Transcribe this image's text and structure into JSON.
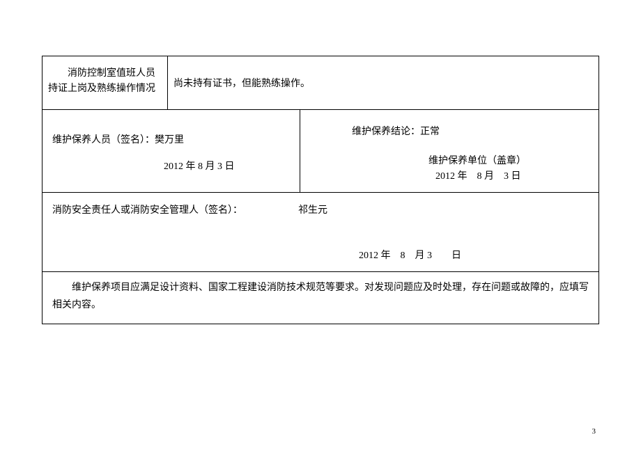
{
  "row1": {
    "label": "　　消防控制室值班人员持证上岗及熟练操作情况",
    "content": "尚未持有证书，但能熟练操作。"
  },
  "row2": {
    "left_label": "维护保养人员（签名）：樊万里",
    "left_date": "2012 年  8 月  3 日",
    "right_conclusion": "维护保养结论：正常",
    "right_stamp": "维护保养单位（盖章）",
    "right_date": "2012 年　8 月　3 日"
  },
  "row3": {
    "label": "消防安全责任人或消防安全管理人（签名）：",
    "name": "祁生元",
    "date": "2012 年　8　月  3　　日"
  },
  "row4": {
    "note": "维护保养项目应满足设计资料、国家工程建设消防技术规范等要求。对发现问题应及时处理，存在问题或故障的，应填写相关内容。"
  },
  "page_number": "3"
}
